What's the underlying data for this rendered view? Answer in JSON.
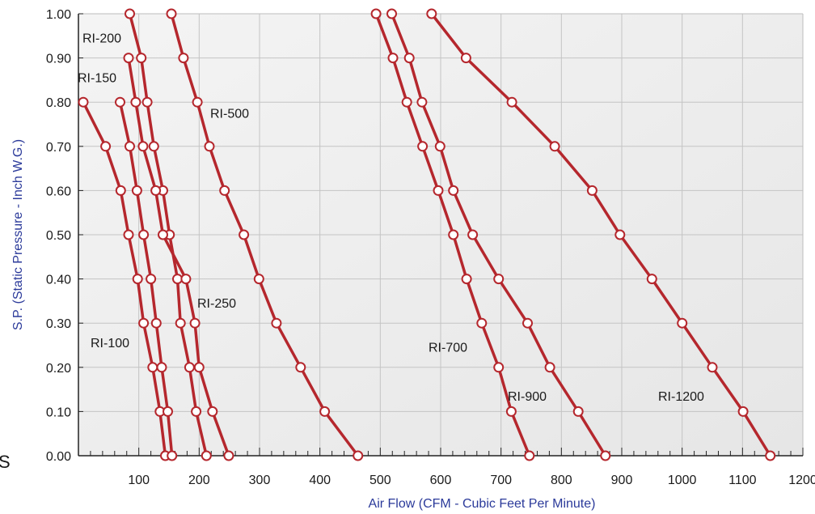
{
  "chart_data": {
    "type": "line",
    "xlabel": "Air Flow (CFM - Cubic Feet Per Minute)",
    "ylabel": "S.P. (Static Pressure - Inch W.G.)",
    "xlim": [
      0,
      1200
    ],
    "ylim": [
      0,
      1.0
    ],
    "x_ticks": [
      "100",
      "200",
      "300",
      "400",
      "500",
      "600",
      "700",
      "800",
      "900",
      "1000",
      "1100",
      "1200"
    ],
    "y_ticks": [
      "0.00",
      "0.10",
      "0.20",
      "0.30",
      "0.40",
      "0.50",
      "0.60",
      "0.70",
      "0.80",
      "0.90",
      "1.00"
    ],
    "grid": true,
    "colors": {
      "line": "#b5272d",
      "marker_fill": "#ffffff",
      "plot_bg": "#eeeeee",
      "grid": "#c4c4c4",
      "axis_text": "#2b3a9a"
    },
    "edge_text": "S",
    "series": [
      {
        "name": "RI-100",
        "points": [
          [
            8,
            0.8
          ],
          [
            45,
            0.7
          ],
          [
            70,
            0.6
          ],
          [
            83,
            0.5
          ],
          [
            98,
            0.4
          ],
          [
            108,
            0.3
          ],
          [
            123,
            0.2
          ],
          [
            135,
            0.1
          ],
          [
            144,
            0.0
          ]
        ]
      },
      {
        "name": "RI-150",
        "points": [
          [
            69,
            0.8
          ],
          [
            85,
            0.7
          ],
          [
            97,
            0.6
          ],
          [
            108,
            0.5
          ],
          [
            120,
            0.4
          ],
          [
            129,
            0.3
          ],
          [
            138,
            0.2
          ],
          [
            148,
            0.1
          ],
          [
            155,
            0.0
          ]
        ]
      },
      {
        "name": "RI-200",
        "points": [
          [
            85,
            1.0
          ],
          [
            104,
            0.9
          ],
          [
            114,
            0.8
          ],
          [
            125,
            0.7
          ],
          [
            140,
            0.6
          ],
          [
            151,
            0.5
          ],
          [
            164,
            0.4
          ],
          [
            169,
            0.3
          ],
          [
            184,
            0.2
          ],
          [
            195,
            0.1
          ],
          [
            212,
            0.0
          ]
        ]
      },
      {
        "name": "RI-250",
        "points": [
          [
            83,
            0.9
          ],
          [
            95,
            0.8
          ],
          [
            107,
            0.7
          ],
          [
            128,
            0.6
          ],
          [
            140,
            0.5
          ],
          [
            178,
            0.4
          ],
          [
            193,
            0.3
          ],
          [
            200,
            0.2
          ],
          [
            222,
            0.1
          ],
          [
            249,
            0.0
          ]
        ]
      },
      {
        "name": "RI-500",
        "points": [
          [
            154,
            1.0
          ],
          [
            174,
            0.9
          ],
          [
            197,
            0.8
          ],
          [
            217,
            0.7
          ],
          [
            242,
            0.6
          ],
          [
            274,
            0.5
          ],
          [
            299,
            0.4
          ],
          [
            328,
            0.3
          ],
          [
            368,
            0.2
          ],
          [
            408,
            0.1
          ],
          [
            463,
            0.0
          ]
        ]
      },
      {
        "name": "RI-700",
        "points": [
          [
            493,
            1.0
          ],
          [
            521,
            0.9
          ],
          [
            544,
            0.8
          ],
          [
            570,
            0.7
          ],
          [
            596,
            0.6
          ],
          [
            621,
            0.5
          ],
          [
            643,
            0.4
          ],
          [
            668,
            0.3
          ],
          [
            696,
            0.2
          ],
          [
            717,
            0.1
          ],
          [
            747,
            0.0
          ]
        ]
      },
      {
        "name": "RI-900",
        "points": [
          [
            519,
            1.0
          ],
          [
            548,
            0.9
          ],
          [
            569,
            0.8
          ],
          [
            599,
            0.7
          ],
          [
            621,
            0.6
          ],
          [
            653,
            0.5
          ],
          [
            696,
            0.4
          ],
          [
            744,
            0.3
          ],
          [
            781,
            0.2
          ],
          [
            828,
            0.1
          ],
          [
            873,
            0.0
          ]
        ]
      },
      {
        "name": "RI-1200",
        "points": [
          [
            585,
            1.0
          ],
          [
            642,
            0.9
          ],
          [
            718,
            0.8
          ],
          [
            789,
            0.7
          ],
          [
            851,
            0.6
          ],
          [
            897,
            0.5
          ],
          [
            950,
            0.4
          ],
          [
            1000,
            0.3
          ],
          [
            1050,
            0.2
          ],
          [
            1101,
            0.1
          ],
          [
            1146,
            0.0
          ]
        ]
      }
    ]
  }
}
